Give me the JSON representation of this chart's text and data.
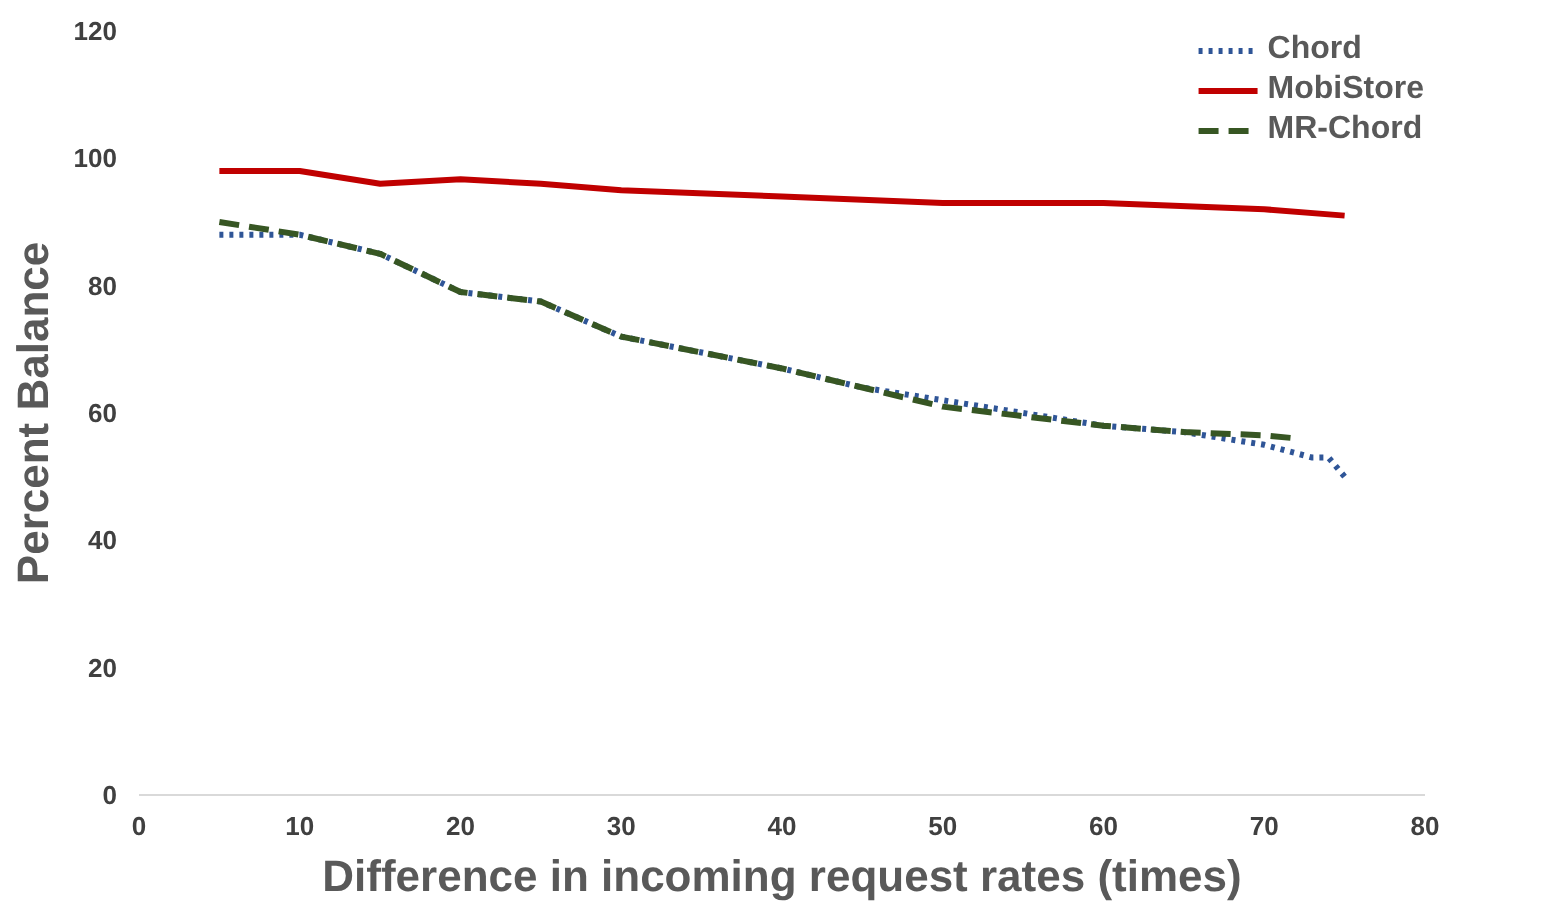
{
  "chart_data": {
    "type": "line",
    "xlabel": "Difference in incoming request rates (times)",
    "ylabel": "Percent Balance",
    "xlim": [
      0,
      80
    ],
    "xticks": [
      0,
      10,
      20,
      30,
      40,
      50,
      60,
      70,
      80
    ],
    "ylim": [
      0,
      120
    ],
    "yticks": [
      0,
      20,
      40,
      60,
      80,
      100,
      120
    ],
    "grid": false,
    "legend": "top right",
    "marker": "none",
    "series": [
      {
        "name": "Chord",
        "color": "#2f5597",
        "line_style": "dotted",
        "x": [
          5,
          10,
          15,
          20,
          25,
          30,
          35,
          40,
          45,
          50,
          55,
          60,
          65,
          70,
          73,
          74,
          75
        ],
        "values": [
          88,
          88,
          85,
          79,
          77.5,
          72,
          69.5,
          67,
          64,
          62,
          60,
          58,
          57,
          55,
          53,
          53,
          50
        ]
      },
      {
        "name": "MobiStore",
        "color": "#c00000",
        "line_style": "solid",
        "x": [
          5,
          10,
          15,
          20,
          25,
          30,
          40,
          50,
          60,
          70,
          75
        ],
        "values": [
          98,
          98,
          96,
          96.7,
          96,
          95,
          94,
          93,
          93,
          92,
          91
        ]
      },
      {
        "name": "MR-Chord",
        "color": "#375623",
        "line_style": "dashed",
        "x": [
          5,
          10,
          15,
          20,
          25,
          30,
          35,
          40,
          45,
          50,
          55,
          60,
          65,
          70,
          72
        ],
        "values": [
          90,
          88,
          85,
          79,
          77.5,
          72,
          69.5,
          67,
          64,
          61,
          59.5,
          58,
          57,
          56.5,
          56
        ]
      }
    ]
  }
}
